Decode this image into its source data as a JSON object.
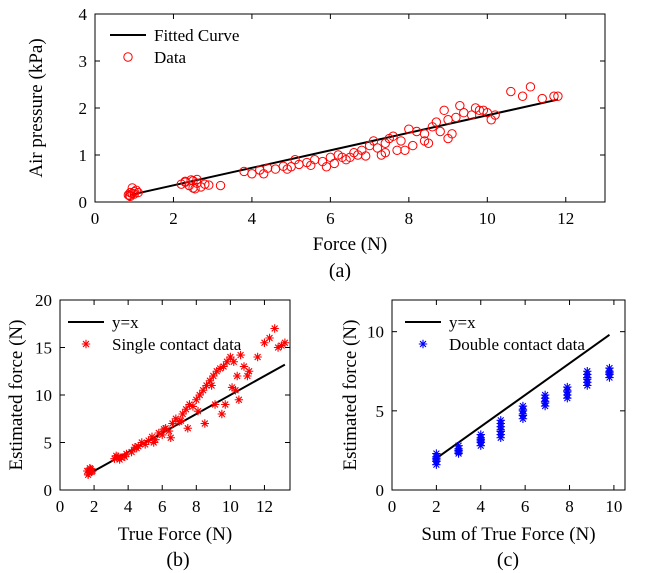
{
  "chart_data": [
    {
      "panel_label": "(a)",
      "type": "scatter",
      "xlabel": "Force (N)",
      "ylabel": "Air pressure (kPa)",
      "xlim": [
        0,
        13
      ],
      "ylim": [
        0,
        4
      ],
      "xticks": [
        0,
        2,
        4,
        6,
        8,
        10,
        12
      ],
      "yticks": [
        0,
        1,
        2,
        3,
        4
      ],
      "legend_position": "top-left",
      "grid": false,
      "series": [
        {
          "name": "Fitted Curve",
          "kind": "line",
          "color": "#000000",
          "x": [
            0.9,
            11.8
          ],
          "y": [
            0.15,
            2.18
          ]
        },
        {
          "name": "Data",
          "kind": "scatter",
          "marker": "circle",
          "color": "#ff0000",
          "x": [
            0.85,
            0.9,
            0.95,
            1.0,
            1.05,
            0.9,
            0.95,
            1.0,
            1.1,
            0.88,
            2.2,
            2.3,
            2.4,
            2.5,
            2.6,
            2.7,
            2.8,
            2.5,
            2.6,
            2.3,
            2.9,
            3.2,
            2.45,
            2.55,
            3.8,
            4.0,
            4.2,
            4.4,
            4.6,
            4.8,
            5.0,
            5.2,
            5.4,
            5.6,
            5.8,
            6.0,
            6.2,
            6.4,
            6.6,
            6.8,
            7.0,
            7.2,
            7.4,
            7.6,
            7.8,
            8.0,
            8.2,
            8.4,
            8.6,
            8.8,
            9.0,
            9.2,
            9.4,
            9.6,
            9.8,
            10.0,
            10.2,
            4.3,
            4.9,
            5.5,
            6.1,
            6.7,
            7.3,
            7.9,
            8.5,
            9.1,
            9.7,
            5.1,
            6.3,
            7.5,
            8.7,
            9.3,
            10.6,
            10.9,
            11.1,
            11.4,
            11.7,
            11.8,
            7.1,
            8.1,
            9.0,
            6.5,
            7.7,
            8.4,
            5.9,
            6.9,
            8.9,
            9.9,
            10.1,
            7.4
          ],
          "y": [
            0.15,
            0.2,
            0.18,
            0.22,
            0.25,
            0.12,
            0.3,
            0.17,
            0.2,
            0.14,
            0.38,
            0.42,
            0.35,
            0.45,
            0.4,
            0.32,
            0.38,
            0.3,
            0.48,
            0.44,
            0.36,
            0.35,
            0.47,
            0.28,
            0.65,
            0.6,
            0.68,
            0.72,
            0.7,
            0.76,
            0.75,
            0.8,
            0.84,
            0.9,
            0.86,
            0.95,
            1.0,
            0.9,
            1.05,
            1.1,
            1.2,
            1.15,
            1.25,
            1.4,
            1.3,
            1.55,
            1.5,
            1.45,
            1.6,
            1.5,
            1.75,
            1.8,
            1.9,
            1.85,
            1.95,
            1.9,
            1.85,
            0.6,
            0.7,
            0.78,
            0.82,
            1.0,
            1.0,
            1.1,
            1.25,
            1.45,
            2.0,
            0.9,
            0.95,
            1.35,
            1.7,
            2.05,
            2.35,
            2.25,
            2.45,
            2.2,
            2.25,
            2.25,
            1.3,
            1.2,
            1.35,
            0.95,
            1.1,
            1.3,
            0.75,
            0.98,
            1.95,
            1.95,
            1.75,
            1.05
          ]
        }
      ]
    },
    {
      "panel_label": "(b)",
      "type": "scatter",
      "xlabel": "True Force (N)",
      "ylabel": "Estimated force (N)",
      "xlim": [
        0,
        13.5
      ],
      "ylim": [
        0,
        20
      ],
      "xticks": [
        0,
        2,
        4,
        6,
        8,
        10,
        12
      ],
      "yticks": [
        0,
        5,
        10,
        15,
        20
      ],
      "legend_position": "top-left",
      "grid": false,
      "series": [
        {
          "name": "y=x",
          "kind": "line",
          "color": "#000000",
          "x": [
            1.6,
            13.2
          ],
          "y": [
            1.6,
            13.2
          ]
        },
        {
          "name": "Single contact data",
          "kind": "scatter",
          "marker": "asterisk",
          "color": "#ff0000",
          "x": [
            1.6,
            1.7,
            1.8,
            1.9,
            1.65,
            1.75,
            1.85,
            3.2,
            3.4,
            3.6,
            3.8,
            3.5,
            3.3,
            3.9,
            4.2,
            4.4,
            4.6,
            4.8,
            5.0,
            5.2,
            5.4,
            5.6,
            5.8,
            6.0,
            6.2,
            6.4,
            6.6,
            6.8,
            7.0,
            7.2,
            7.4,
            7.6,
            7.8,
            8.0,
            8.2,
            8.4,
            8.6,
            8.8,
            9.0,
            9.2,
            9.4,
            9.6,
            9.8,
            10.0,
            10.2,
            10.4,
            10.6,
            10.8,
            11.0,
            4.5,
            5.5,
            6.5,
            7.5,
            8.5,
            9.5,
            10.5,
            6.1,
            7.1,
            8.1,
            9.1,
            10.1,
            11.1,
            12.0,
            12.3,
            12.6,
            12.8,
            13.0,
            13.2,
            8.9,
            9.7,
            10.3,
            11.6
          ],
          "y": [
            2.0,
            1.8,
            2.2,
            2.0,
            1.6,
            2.3,
            1.9,
            3.3,
            3.5,
            3.4,
            3.5,
            3.2,
            3.6,
            3.8,
            4.0,
            4.5,
            4.6,
            5.0,
            4.8,
            5.2,
            5.6,
            5.3,
            6.0,
            5.8,
            6.5,
            6.2,
            7.0,
            7.5,
            7.2,
            8.0,
            8.5,
            9.0,
            8.8,
            9.5,
            10.0,
            10.5,
            11.0,
            11.5,
            12.0,
            12.5,
            12.8,
            13.0,
            13.5,
            14.0,
            13.5,
            12.0,
            14.2,
            13.0,
            12.0,
            4.4,
            5.0,
            5.5,
            6.5,
            7.0,
            8.0,
            9.5,
            6.4,
            7.3,
            8.3,
            9.0,
            10.8,
            12.5,
            15.5,
            16.0,
            17.0,
            15.0,
            15.2,
            15.5,
            11.0,
            9.0,
            10.5,
            14.0
          ]
        }
      ]
    },
    {
      "panel_label": "(c)",
      "type": "scatter",
      "xlabel": "Sum of True Force (N)",
      "ylabel": "Estimated force (N)",
      "xlim": [
        0,
        10.5
      ],
      "ylim": [
        0,
        12
      ],
      "xticks": [
        0,
        2,
        4,
        6,
        8,
        10
      ],
      "yticks": [
        0,
        5,
        10
      ],
      "legend_position": "top-left",
      "grid": false,
      "series": [
        {
          "name": "y=x",
          "kind": "line",
          "color": "#000000",
          "x": [
            2.0,
            9.8
          ],
          "y": [
            2.0,
            9.8
          ]
        },
        {
          "name": "Double contact data",
          "kind": "scatter",
          "marker": "asterisk",
          "color": "#0000ff",
          "x": [
            2,
            2,
            2,
            2,
            2,
            2,
            3,
            3,
            3,
            3,
            3,
            4,
            4,
            4,
            4,
            4,
            4,
            4.9,
            4.9,
            4.9,
            4.9,
            4.9,
            4.9,
            4.9,
            5.9,
            5.9,
            5.9,
            5.9,
            5.9,
            5.9,
            6.9,
            6.9,
            6.9,
            6.9,
            6.9,
            7.9,
            7.9,
            7.9,
            7.9,
            7.9,
            8.8,
            8.8,
            8.8,
            8.8,
            8.8,
            8.8,
            9.8,
            9.8,
            9.8,
            9.8,
            9.8
          ],
          "y": [
            1.6,
            1.8,
            1.9,
            2.0,
            2.1,
            2.3,
            2.3,
            2.4,
            2.5,
            2.6,
            2.8,
            2.8,
            3.0,
            3.1,
            3.2,
            3.3,
            3.5,
            3.3,
            3.5,
            3.7,
            3.8,
            4.0,
            4.2,
            4.4,
            4.5,
            4.7,
            4.8,
            5.0,
            5.1,
            5.3,
            5.3,
            5.5,
            5.6,
            5.8,
            6.0,
            5.8,
            6.0,
            6.2,
            6.3,
            6.5,
            6.6,
            6.8,
            7.0,
            7.1,
            7.3,
            7.5,
            7.1,
            7.3,
            7.4,
            7.5,
            7.7
          ]
        }
      ]
    }
  ]
}
